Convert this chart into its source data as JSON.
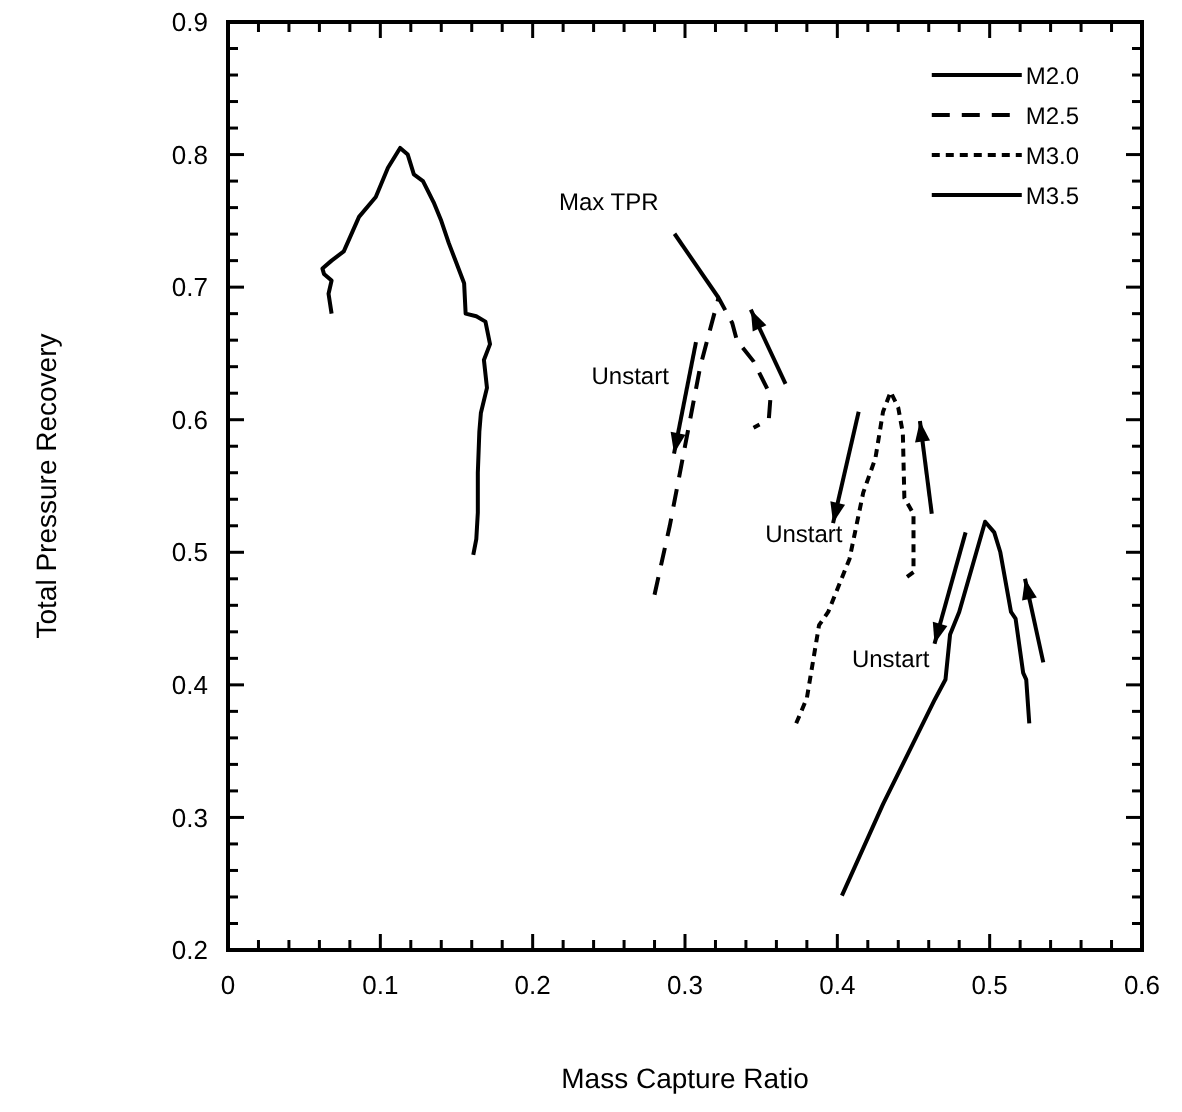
{
  "chart_data": {
    "type": "line",
    "xlabel": "Mass Capture Ratio",
    "ylabel": "Total Pressure Recovery",
    "xlim": [
      0,
      0.6
    ],
    "ylim": [
      0.2,
      0.9
    ],
    "xticks": [
      0,
      0.1,
      0.2,
      0.3,
      0.4,
      0.5,
      0.6
    ],
    "yticks": [
      0.2,
      0.3,
      0.4,
      0.5,
      0.6,
      0.7,
      0.8,
      0.9
    ],
    "legend": "top right",
    "grid": false,
    "marker": "none",
    "series": [
      {
        "name": "M2.0",
        "color": "#000000",
        "line_style": "solid",
        "x": [
          0.068,
          0.066,
          0.068,
          0.063,
          0.062,
          0.068,
          0.076,
          0.086,
          0.097,
          0.105,
          0.113,
          0.118,
          0.122,
          0.128,
          0.135,
          0.14,
          0.145,
          0.15,
          0.155,
          0.156,
          0.163,
          0.169,
          0.172,
          0.168,
          0.17,
          0.166,
          0.165,
          0.164,
          0.164,
          0.163,
          0.161
        ],
        "values": [
          0.68,
          0.695,
          0.705,
          0.71,
          0.714,
          0.72,
          0.727,
          0.753,
          0.768,
          0.79,
          0.805,
          0.8,
          0.785,
          0.78,
          0.764,
          0.75,
          0.733,
          0.718,
          0.703,
          0.68,
          0.678,
          0.674,
          0.657,
          0.645,
          0.624,
          0.605,
          0.591,
          0.56,
          0.53,
          0.51,
          0.498
        ]
      },
      {
        "name": "M2.5",
        "color": "#000000",
        "line_style": "dashed",
        "x": [
          0.28,
          0.29,
          0.3,
          0.31,
          0.322,
          0.331,
          0.334,
          0.345,
          0.355,
          0.356,
          0.355,
          0.345
        ],
        "values": [
          0.468,
          0.52,
          0.58,
          0.64,
          0.692,
          0.673,
          0.66,
          0.644,
          0.621,
          0.615,
          0.6,
          0.594
        ]
      },
      {
        "name": "M3.0",
        "color": "#000000",
        "line_style": "dotted",
        "x": [
          0.373,
          0.38,
          0.388,
          0.394,
          0.408,
          0.417,
          0.425,
          0.43,
          0.435,
          0.44,
          0.443,
          0.444,
          0.45,
          0.45,
          0.444
        ],
        "values": [
          0.371,
          0.39,
          0.445,
          0.455,
          0.495,
          0.545,
          0.571,
          0.606,
          0.621,
          0.609,
          0.59,
          0.541,
          0.529,
          0.485,
          0.48
        ]
      },
      {
        "name": "M3.5",
        "color": "#000000",
        "line_style": "solid",
        "x": [
          0.403,
          0.43,
          0.464,
          0.471,
          0.474,
          0.48,
          0.489,
          0.497,
          0.503,
          0.507,
          0.514,
          0.517,
          0.522,
          0.524,
          0.526
        ],
        "values": [
          0.241,
          0.31,
          0.389,
          0.404,
          0.438,
          0.455,
          0.491,
          0.523,
          0.515,
          0.5,
          0.455,
          0.45,
          0.409,
          0.404,
          0.371
        ]
      }
    ],
    "annotations": [
      {
        "text": "Max TPR",
        "x": 0.322,
        "y": 0.692
      },
      "Unstart",
      "Unstart",
      "Unstart"
    ]
  }
}
